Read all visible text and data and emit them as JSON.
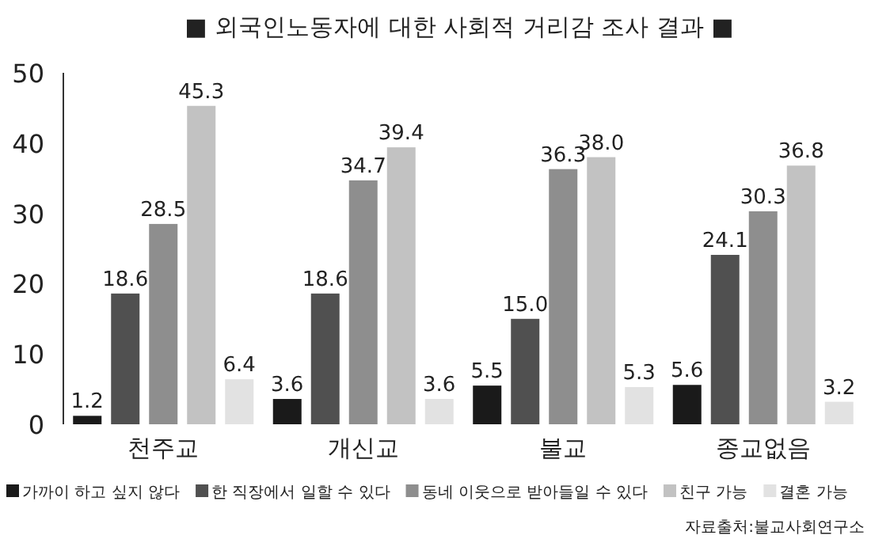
{
  "chart_data": {
    "type": "bar",
    "title": "■ 외국인노동자에 대한 사회적 거리감 조사 결과 ■",
    "categories": [
      "천주교",
      "개신교",
      "불교",
      "종교없음"
    ],
    "series": [
      {
        "name": "가까이 하고 싶지 않다",
        "color": "#1a1a1a",
        "values": [
          1.2,
          3.6,
          5.5,
          5.6
        ],
        "value_labels": [
          "1.2",
          "3.6",
          "5.5",
          "5.6"
        ]
      },
      {
        "name": "한 직장에서 일할 수 있다",
        "color": "#505050",
        "values": [
          18.6,
          18.6,
          15.0,
          24.1
        ],
        "value_labels": [
          "18.6",
          "18.6",
          "15.0",
          "24.1"
        ]
      },
      {
        "name": "동네 이웃으로 받아들일 수 있다",
        "color": "#8e8e8e",
        "values": [
          28.5,
          34.7,
          36.3,
          30.3
        ],
        "value_labels": [
          "28.5",
          "34.7",
          "36.3",
          "30.3"
        ]
      },
      {
        "name": "친구 가능",
        "color": "#c2c2c2",
        "values": [
          45.3,
          39.4,
          38.0,
          36.8
        ],
        "value_labels": [
          "45.3",
          "39.4",
          "38.0",
          "36.8"
        ]
      },
      {
        "name": "결혼 가능",
        "color": "#e2e2e2",
        "values": [
          6.4,
          3.6,
          5.3,
          3.2
        ],
        "value_labels": [
          "6.4",
          "3.6",
          "5.3",
          "3.2"
        ]
      }
    ],
    "ylim": [
      0,
      50
    ],
    "yticks": [
      0,
      10,
      20,
      30,
      40,
      50
    ],
    "legend": "bottom",
    "grid": false,
    "annotations": [
      "자료출처:불교사회연구소"
    ]
  }
}
